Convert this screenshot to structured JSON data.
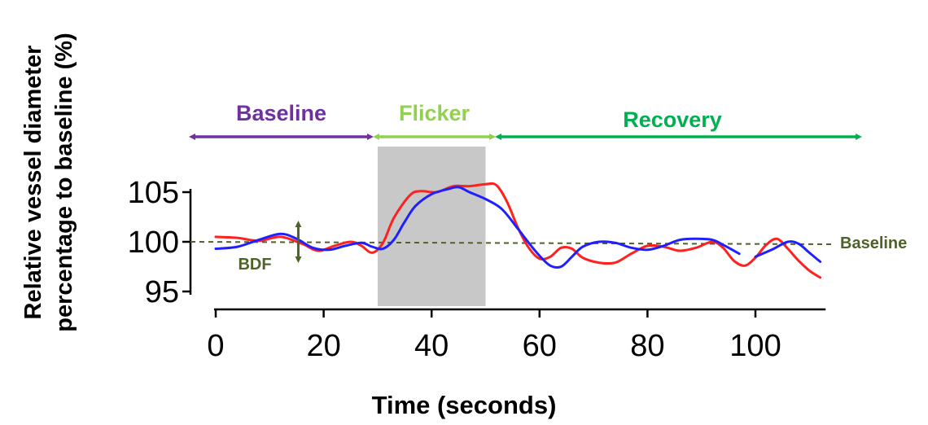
{
  "chart_data": {
    "type": "line",
    "xlabel": "Time (seconds)",
    "ylabel_lines": [
      "Relative vessel diameter",
      "percentage to baseline (%)"
    ],
    "xlim": [
      0,
      113
    ],
    "ylim": [
      95,
      105
    ],
    "x_ticks": [
      0,
      20,
      40,
      60,
      80,
      100
    ],
    "y_ticks": [
      95,
      100,
      105
    ],
    "baseline_value": 100,
    "baseline_label": "Baseline",
    "bdf_label": "BDF",
    "bdf_x": 15,
    "bdf_range": [
      98.2,
      101.8
    ],
    "flicker_shade": [
      30,
      50
    ],
    "phases": [
      {
        "label": "Baseline",
        "start": 0,
        "end": 28,
        "color": "#7030a0"
      },
      {
        "label": "Flicker",
        "start": 30,
        "end": 51,
        "color": "#92d050"
      },
      {
        "label": "Recovery",
        "start": 52,
        "end": 118,
        "color": "#00b050"
      }
    ],
    "series": [
      {
        "color": "#ff2020",
        "segments": [
          [
            [
              0,
              100.5
            ],
            [
              4,
              100.4
            ],
            [
              8,
              100.1
            ],
            [
              12,
              100.5
            ],
            [
              16,
              99.8
            ],
            [
              19,
              99.1
            ],
            [
              22,
              99.6
            ],
            [
              25,
              100.0
            ],
            [
              27,
              99.6
            ],
            [
              29,
              98.9
            ],
            [
              31,
              99.9
            ],
            [
              33,
              102.4
            ],
            [
              36,
              104.7
            ],
            [
              38,
              105.1
            ],
            [
              41,
              105.0
            ],
            [
              44,
              105.6
            ],
            [
              47,
              105.6
            ],
            [
              50,
              105.8
            ],
            [
              52,
              105.7
            ],
            [
              54,
              104.0
            ],
            [
              56,
              101.4
            ],
            [
              58,
              99.4
            ],
            [
              60,
              98.3
            ],
            [
              62,
              98.5
            ],
            [
              64,
              99.4
            ],
            [
              66,
              99.3
            ],
            [
              68,
              98.4
            ],
            [
              71,
              97.9
            ],
            [
              74,
              97.9
            ],
            [
              77,
              98.8
            ],
            [
              80,
              99.6
            ],
            [
              83,
              99.5
            ],
            [
              86,
              99.1
            ],
            [
              89,
              99.4
            ],
            [
              92,
              100.0
            ],
            [
              94,
              99.4
            ],
            [
              96,
              98.1
            ],
            [
              98,
              97.6
            ],
            [
              100,
              98.4
            ],
            [
              102,
              99.7
            ],
            [
              104,
              100.3
            ],
            [
              106,
              99.3
            ],
            [
              108,
              98.1
            ],
            [
              110,
              97.1
            ],
            [
              112,
              96.4
            ]
          ]
        ]
      },
      {
        "color": "#2020ff",
        "segments": [
          [
            [
              0,
              99.3
            ],
            [
              4,
              99.5
            ],
            [
              8,
              100.2
            ],
            [
              12,
              100.8
            ],
            [
              15,
              100.3
            ],
            [
              18,
              99.4
            ],
            [
              21,
              99.2
            ],
            [
              24,
              99.6
            ],
            [
              27,
              99.9
            ],
            [
              29,
              99.5
            ],
            [
              31,
              99.3
            ],
            [
              33,
              100.2
            ],
            [
              35,
              102.0
            ],
            [
              37,
              103.6
            ],
            [
              40,
              104.8
            ],
            [
              43,
              105.3
            ],
            [
              45,
              105.5
            ],
            [
              47,
              105.0
            ],
            [
              50,
              104.3
            ],
            [
              53,
              103.3
            ],
            [
              56,
              101.3
            ],
            [
              58,
              99.9
            ],
            [
              60,
              98.6
            ],
            [
              62,
              97.6
            ],
            [
              64,
              97.5
            ],
            [
              66,
              98.5
            ],
            [
              68,
              99.5
            ],
            [
              71,
              100.0
            ],
            [
              74,
              99.9
            ],
            [
              77,
              99.4
            ],
            [
              80,
              99.2
            ],
            [
              83,
              99.6
            ],
            [
              86,
              100.2
            ],
            [
              89,
              100.3
            ],
            [
              92,
              100.2
            ],
            [
              94,
              99.7
            ],
            [
              97,
              98.8
            ]
          ],
          [
            [
              100,
              98.5
            ],
            [
              103,
              99.2
            ],
            [
              106,
              100.0
            ],
            [
              108,
              99.8
            ],
            [
              110,
              98.9
            ],
            [
              112,
              98.0
            ]
          ]
        ]
      }
    ]
  }
}
